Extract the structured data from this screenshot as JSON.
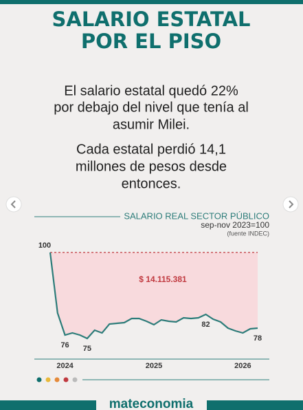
{
  "header": {
    "title": [
      "SALARIO ESTATAL",
      "POR EL PISO"
    ]
  },
  "text": [
    [
      "El salario estatal quedó 22%",
      "por debajo del nivel que tenía al",
      "asumir Milei."
    ],
    [
      "Cada estatal perdió 14,1",
      "millones de pesos desde",
      "entonces."
    ]
  ],
  "footer": "mateconomia",
  "chart_data": {
    "type": "line",
    "title": "SALARIO REAL SECTOR PÚBLICO",
    "subtitle": "sep-nov 2023=100",
    "source": "(fuente INDEC)",
    "annotation": "$ 14.115.381",
    "categories": [
      null,
      null,
      "2024",
      null,
      null,
      null,
      null,
      null,
      null,
      null,
      null,
      null,
      null,
      null,
      "2025",
      null,
      null,
      null,
      null,
      null,
      null,
      null,
      null,
      null,
      null,
      null,
      "2026",
      null,
      null
    ],
    "values": [
      100,
      82.4,
      76,
      76.6,
      76,
      75,
      77.4,
      76.6,
      79.2,
      79.4,
      79.6,
      80.8,
      80.8,
      80,
      79,
      80.4,
      80,
      79.8,
      81,
      80.8,
      81,
      82,
      80.6,
      79.8,
      78,
      77.2,
      76.6,
      77.8,
      78
    ],
    "value_labels": [
      "100",
      null,
      "76",
      null,
      null,
      "75",
      null,
      null,
      null,
      null,
      null,
      null,
      null,
      null,
      null,
      null,
      null,
      null,
      null,
      null,
      null,
      "82",
      null,
      null,
      null,
      null,
      null,
      null,
      "78"
    ],
    "color": "#2c7c79",
    "fill_color": "#f8dadd",
    "reference_color": "#c0393f",
    "ylim": [
      70,
      102
    ]
  }
}
